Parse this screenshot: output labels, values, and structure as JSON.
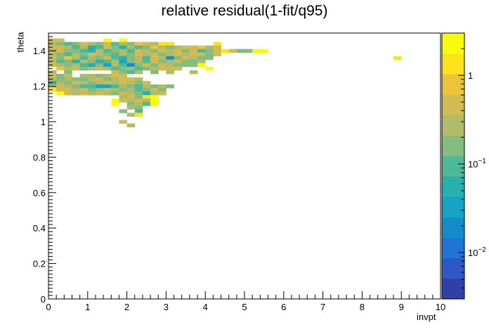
{
  "chart_data": {
    "type": "heatmap",
    "title": "relative residual(1-fit/q95)",
    "xlabel": "invpt",
    "ylabel": "theta",
    "xlim": [
      0,
      10
    ],
    "ylim": [
      0,
      1.5
    ],
    "x_ticks": [
      "0",
      "1",
      "2",
      "3",
      "4",
      "5",
      "6",
      "7",
      "8",
      "9",
      "10"
    ],
    "y_ticks": [
      "0",
      "0.2",
      "0.4",
      "0.6",
      "0.8",
      "1",
      "1.2",
      "1.4"
    ],
    "colorbar": {
      "scale": "log",
      "range": [
        0.003,
        3
      ],
      "tick_labels": [
        "10^-2",
        "10^-1",
        "1"
      ],
      "palette": [
        "#3040a8",
        "#2d58c8",
        "#1f74d6",
        "#148ccc",
        "#17a3c4",
        "#27b0ae",
        "#4fb896",
        "#84bc80",
        "#b0bc6a",
        "#d2bb52",
        "#eec23a",
        "#fde31c",
        "#f9fb0e"
      ]
    },
    "bin_width": [
      0.2,
      0.02
    ],
    "bins": [
      [
        0.1,
        1.46,
        0.4
      ],
      [
        0.3,
        1.46,
        0.4
      ],
      [
        1.5,
        1.46,
        2.0
      ],
      [
        1.9,
        1.46,
        2.2
      ],
      [
        0.1,
        1.44,
        0.3
      ],
      [
        0.3,
        1.44,
        0.2
      ],
      [
        0.5,
        1.44,
        0.1
      ],
      [
        0.7,
        1.44,
        0.2
      ],
      [
        0.9,
        1.44,
        0.4
      ],
      [
        1.1,
        1.44,
        0.3
      ],
      [
        1.3,
        1.44,
        0.2
      ],
      [
        1.5,
        1.44,
        0.6
      ],
      [
        1.7,
        1.44,
        0.1
      ],
      [
        1.9,
        1.44,
        0.3
      ],
      [
        2.1,
        1.44,
        0.2
      ],
      [
        2.3,
        1.44,
        0.8
      ],
      [
        2.5,
        1.44,
        0.4
      ],
      [
        2.7,
        1.44,
        0.3
      ],
      [
        2.9,
        1.44,
        1.5
      ],
      [
        3.1,
        1.44,
        1.3
      ],
      [
        4.3,
        1.44,
        1.2
      ],
      [
        0.1,
        1.42,
        0.5
      ],
      [
        0.3,
        1.42,
        0.5
      ],
      [
        0.5,
        1.42,
        0.3
      ],
      [
        0.7,
        1.42,
        0.1
      ],
      [
        0.9,
        1.42,
        0.3
      ],
      [
        1.1,
        1.42,
        0.05
      ],
      [
        1.3,
        1.42,
        0.1
      ],
      [
        1.5,
        1.42,
        0.4
      ],
      [
        1.7,
        1.42,
        0.2
      ],
      [
        1.9,
        1.42,
        0.06
      ],
      [
        2.1,
        1.42,
        0.3
      ],
      [
        2.3,
        1.42,
        0.1
      ],
      [
        2.5,
        1.42,
        0.2
      ],
      [
        2.7,
        1.42,
        1.0
      ],
      [
        2.9,
        1.42,
        0.3
      ],
      [
        3.1,
        1.42,
        0.2
      ],
      [
        3.3,
        1.42,
        0.3
      ],
      [
        3.5,
        1.42,
        0.4
      ],
      [
        3.7,
        1.42,
        0.5
      ],
      [
        3.9,
        1.42,
        0.8
      ],
      [
        4.1,
        1.42,
        0.3
      ],
      [
        4.3,
        1.42,
        0.4
      ],
      [
        0.1,
        1.4,
        0.3
      ],
      [
        0.3,
        1.4,
        0.4
      ],
      [
        0.5,
        1.4,
        0.2
      ],
      [
        0.7,
        1.4,
        0.2
      ],
      [
        0.9,
        1.4,
        0.1
      ],
      [
        1.1,
        1.4,
        0.06
      ],
      [
        1.3,
        1.4,
        0.3
      ],
      [
        1.5,
        1.4,
        0.1
      ],
      [
        1.7,
        1.4,
        0.2
      ],
      [
        1.9,
        1.4,
        0.3
      ],
      [
        2.1,
        1.4,
        0.1
      ],
      [
        2.3,
        1.4,
        0.4
      ],
      [
        2.5,
        1.4,
        0.3
      ],
      [
        2.7,
        1.4,
        0.2
      ],
      [
        2.9,
        1.4,
        0.5
      ],
      [
        3.1,
        1.4,
        0.3
      ],
      [
        3.3,
        1.4,
        0.4
      ],
      [
        3.5,
        1.4,
        0.2
      ],
      [
        3.7,
        1.4,
        0.5
      ],
      [
        3.9,
        1.4,
        0.1
      ],
      [
        4.1,
        1.4,
        0.2
      ],
      [
        4.3,
        1.4,
        0.4
      ],
      [
        4.5,
        1.4,
        1.3
      ],
      [
        4.7,
        1.4,
        0.4
      ],
      [
        4.9,
        1.4,
        0.2
      ],
      [
        5.1,
        1.4,
        0.15
      ],
      [
        5.3,
        1.4,
        3.0
      ],
      [
        5.5,
        1.4,
        3.0
      ],
      [
        0.1,
        1.38,
        0.3
      ],
      [
        0.3,
        1.38,
        0.2
      ],
      [
        0.5,
        1.38,
        0.1
      ],
      [
        0.7,
        1.38,
        0.3
      ],
      [
        0.9,
        1.38,
        0.2
      ],
      [
        1.1,
        1.38,
        0.4
      ],
      [
        1.3,
        1.38,
        0.3
      ],
      [
        1.5,
        1.38,
        0.15
      ],
      [
        1.7,
        1.38,
        0.08
      ],
      [
        1.9,
        1.38,
        0.3
      ],
      [
        2.1,
        1.38,
        0.2
      ],
      [
        2.3,
        1.38,
        0.4
      ],
      [
        2.5,
        1.38,
        0.3
      ],
      [
        2.7,
        1.38,
        0.5
      ],
      [
        2.9,
        1.38,
        0.2
      ],
      [
        3.1,
        1.38,
        0.3
      ],
      [
        3.3,
        1.38,
        0.4
      ],
      [
        3.5,
        1.38,
        0.3
      ],
      [
        3.7,
        1.38,
        0.5
      ],
      [
        3.9,
        1.38,
        0.4
      ],
      [
        4.1,
        1.38,
        0.2
      ],
      [
        4.3,
        1.38,
        0.5
      ],
      [
        0.1,
        1.36,
        0.4
      ],
      [
        0.3,
        1.36,
        0.2
      ],
      [
        0.5,
        1.36,
        0.7
      ],
      [
        0.7,
        1.36,
        0.3
      ],
      [
        0.9,
        1.36,
        0.1
      ],
      [
        1.1,
        1.36,
        0.3
      ],
      [
        1.3,
        1.36,
        0.2
      ],
      [
        1.5,
        1.36,
        0.4
      ],
      [
        1.7,
        1.36,
        0.1
      ],
      [
        1.9,
        1.36,
        0.05
      ],
      [
        2.1,
        1.36,
        0.2
      ],
      [
        2.3,
        1.36,
        0.3
      ],
      [
        2.5,
        1.36,
        0.1
      ],
      [
        2.7,
        1.36,
        0.4
      ],
      [
        2.9,
        1.36,
        0.3
      ],
      [
        3.1,
        1.36,
        0.02
      ],
      [
        3.3,
        1.36,
        0.2
      ],
      [
        3.5,
        1.36,
        0.5
      ],
      [
        3.7,
        1.36,
        0.3
      ],
      [
        3.9,
        1.36,
        0.15
      ],
      [
        4.1,
        1.36,
        0.2
      ],
      [
        8.9,
        1.36,
        1.2
      ],
      [
        0.1,
        1.34,
        0.3
      ],
      [
        0.3,
        1.34,
        0.1
      ],
      [
        0.5,
        1.34,
        0.2
      ],
      [
        0.7,
        1.34,
        0.06
      ],
      [
        0.9,
        1.34,
        0.3
      ],
      [
        1.1,
        1.34,
        0.2
      ],
      [
        1.3,
        1.34,
        0.05
      ],
      [
        1.5,
        1.34,
        0.1
      ],
      [
        1.7,
        1.34,
        0.3
      ],
      [
        1.9,
        1.34,
        0.04
      ],
      [
        2.1,
        1.34,
        0.15
      ],
      [
        2.3,
        1.34,
        0.3
      ],
      [
        2.5,
        1.34,
        0.1
      ],
      [
        2.7,
        1.34,
        0.4
      ],
      [
        2.9,
        1.34,
        0.2
      ],
      [
        3.1,
        1.34,
        0.3
      ],
      [
        3.3,
        1.34,
        0.4
      ],
      [
        3.5,
        1.34,
        0.2
      ],
      [
        3.7,
        1.34,
        0.2
      ],
      [
        3.9,
        1.34,
        0.3
      ],
      [
        0.1,
        1.32,
        0.5
      ],
      [
        0.3,
        1.32,
        0.3
      ],
      [
        0.5,
        1.32,
        0.2
      ],
      [
        0.7,
        1.32,
        0.3
      ],
      [
        0.9,
        1.32,
        0.1
      ],
      [
        1.1,
        1.32,
        0.05
      ],
      [
        1.3,
        1.32,
        0.2
      ],
      [
        1.5,
        1.32,
        0.04
      ],
      [
        1.7,
        1.32,
        0.3
      ],
      [
        1.9,
        1.32,
        0.1
      ],
      [
        2.1,
        1.32,
        0.015
      ],
      [
        2.3,
        1.32,
        0.2
      ],
      [
        2.5,
        1.32,
        0.4
      ],
      [
        2.7,
        1.32,
        0.2
      ],
      [
        2.9,
        1.32,
        0.4
      ],
      [
        3.1,
        1.32,
        0.3
      ],
      [
        3.3,
        1.32,
        0.15
      ],
      [
        3.5,
        1.32,
        0.2
      ],
      [
        3.7,
        1.32,
        0.15
      ],
      [
        3.9,
        1.32,
        2.0
      ],
      [
        0.3,
        1.3,
        0.8
      ],
      [
        0.5,
        1.3,
        0.3
      ],
      [
        0.7,
        1.3,
        0.4
      ],
      [
        0.9,
        1.3,
        0.2
      ],
      [
        1.1,
        1.3,
        0.3
      ],
      [
        1.3,
        1.3,
        0.4
      ],
      [
        1.5,
        1.3,
        0.3
      ],
      [
        1.7,
        1.3,
        0.1
      ],
      [
        1.9,
        1.3,
        0.2
      ],
      [
        2.1,
        1.3,
        0.3
      ],
      [
        2.3,
        1.3,
        0.08
      ],
      [
        2.5,
        1.3,
        0.2
      ],
      [
        2.7,
        1.3,
        0.3
      ],
      [
        2.9,
        1.3,
        0.5
      ],
      [
        3.1,
        1.3,
        0.4
      ],
      [
        3.3,
        1.3,
        0.5
      ],
      [
        4.1,
        1.3,
        3.0
      ],
      [
        0.1,
        1.28,
        0.3
      ],
      [
        0.5,
        1.28,
        0.2
      ],
      [
        1.7,
        1.28,
        0.4
      ],
      [
        1.9,
        1.28,
        0.2
      ],
      [
        2.1,
        1.28,
        0.1
      ],
      [
        2.3,
        1.28,
        0.3
      ],
      [
        2.7,
        1.28,
        0.2
      ],
      [
        3.1,
        1.28,
        0.3
      ],
      [
        3.7,
        1.28,
        0.3
      ],
      [
        0.1,
        1.26,
        0.4
      ],
      [
        0.3,
        1.26,
        0.2
      ],
      [
        0.5,
        1.26,
        0.5
      ],
      [
        0.9,
        1.26,
        0.3
      ],
      [
        1.1,
        1.26,
        0.3
      ],
      [
        1.3,
        1.26,
        0.2
      ],
      [
        1.5,
        1.26,
        0.3
      ],
      [
        1.7,
        1.26,
        0.4
      ],
      [
        1.9,
        1.26,
        0.5
      ],
      [
        0.1,
        1.24,
        0.3
      ],
      [
        0.3,
        1.24,
        0.2
      ],
      [
        0.5,
        1.24,
        0.3
      ],
      [
        0.7,
        1.24,
        0.2
      ],
      [
        0.9,
        1.24,
        0.15
      ],
      [
        1.1,
        1.24,
        0.3
      ],
      [
        1.3,
        1.24,
        0.4
      ],
      [
        1.5,
        1.24,
        0.2
      ],
      [
        1.7,
        1.24,
        0.3
      ],
      [
        1.9,
        1.24,
        0.4
      ],
      [
        2.1,
        1.24,
        0.5
      ],
      [
        2.3,
        1.24,
        0.3
      ],
      [
        0.1,
        1.22,
        0.06
      ],
      [
        0.3,
        1.22,
        0.3
      ],
      [
        0.5,
        1.22,
        0.2
      ],
      [
        0.7,
        1.22,
        0.4
      ],
      [
        0.9,
        1.22,
        0.3
      ],
      [
        1.1,
        1.22,
        0.2
      ],
      [
        1.3,
        1.22,
        0.3
      ],
      [
        1.5,
        1.22,
        0.5
      ],
      [
        1.7,
        1.22,
        0.3
      ],
      [
        1.9,
        1.22,
        0.4
      ],
      [
        2.1,
        1.22,
        0.3
      ],
      [
        2.3,
        1.22,
        0.2
      ],
      [
        2.5,
        1.22,
        0.4
      ],
      [
        0.1,
        1.2,
        0.4
      ],
      [
        0.3,
        1.2,
        0.5
      ],
      [
        0.5,
        1.2,
        0.3
      ],
      [
        0.7,
        1.2,
        0.2
      ],
      [
        0.9,
        1.2,
        0.1
      ],
      [
        1.1,
        1.2,
        0.08
      ],
      [
        1.3,
        1.2,
        0.04
      ],
      [
        1.5,
        1.2,
        0.03
      ],
      [
        1.7,
        1.2,
        0.1
      ],
      [
        1.9,
        1.2,
        0.3
      ],
      [
        2.1,
        1.2,
        0.2
      ],
      [
        2.3,
        1.2,
        0.1
      ],
      [
        2.5,
        1.2,
        0.3
      ],
      [
        2.7,
        1.2,
        0.2
      ],
      [
        2.9,
        1.2,
        0.3
      ],
      [
        3.1,
        1.2,
        0.2
      ],
      [
        0.1,
        1.18,
        1.5
      ],
      [
        0.3,
        1.18,
        0.4
      ],
      [
        0.5,
        1.18,
        0.5
      ],
      [
        0.7,
        1.18,
        0.3
      ],
      [
        0.9,
        1.18,
        0.4
      ],
      [
        1.1,
        1.18,
        0.2
      ],
      [
        1.3,
        1.18,
        0.3
      ],
      [
        1.5,
        1.18,
        0.4
      ],
      [
        1.7,
        1.18,
        0.3
      ],
      [
        1.9,
        1.18,
        0.2
      ],
      [
        2.1,
        1.18,
        0.3
      ],
      [
        2.3,
        1.18,
        0.1
      ],
      [
        2.5,
        1.18,
        0.2
      ],
      [
        2.7,
        1.18,
        0.4
      ],
      [
        2.9,
        1.18,
        0.2
      ],
      [
        0.3,
        1.16,
        3.0
      ],
      [
        0.5,
        1.16,
        0.4
      ],
      [
        0.7,
        1.16,
        0.3
      ],
      [
        0.9,
        1.16,
        0.5
      ],
      [
        1.1,
        1.16,
        0.3
      ],
      [
        1.3,
        1.16,
        0.4
      ],
      [
        1.5,
        1.16,
        0.3
      ],
      [
        1.7,
        1.16,
        0.2
      ],
      [
        1.9,
        1.16,
        0.4
      ],
      [
        2.1,
        1.16,
        0.3
      ],
      [
        2.3,
        1.16,
        0.2
      ],
      [
        2.5,
        1.16,
        0.05
      ],
      [
        2.7,
        1.16,
        0.3
      ],
      [
        2.9,
        1.16,
        0.4
      ],
      [
        1.9,
        1.14,
        0.3
      ],
      [
        2.1,
        1.14,
        0.4
      ],
      [
        2.3,
        1.14,
        0.2
      ],
      [
        2.5,
        1.14,
        1.5
      ],
      [
        2.7,
        1.14,
        1.8
      ],
      [
        1.7,
        1.12,
        2.8
      ],
      [
        1.9,
        1.12,
        0.4
      ],
      [
        2.1,
        1.12,
        0.3
      ],
      [
        2.3,
        1.12,
        0.4
      ],
      [
        2.5,
        1.12,
        0.3
      ],
      [
        2.7,
        1.12,
        2.5
      ],
      [
        1.7,
        1.1,
        2.6
      ],
      [
        2.1,
        1.1,
        0.2
      ],
      [
        2.3,
        1.1,
        0.3
      ],
      [
        2.5,
        1.1,
        0.1
      ],
      [
        2.7,
        1.1,
        2.8
      ],
      [
        2.1,
        1.08,
        0.3
      ],
      [
        2.3,
        1.08,
        0.2
      ],
      [
        1.9,
        1.06,
        0.2
      ],
      [
        2.3,
        1.06,
        0.1
      ],
      [
        2.1,
        1.04,
        0.3
      ],
      [
        2.3,
        1.04,
        1.6
      ],
      [
        1.9,
        1.0,
        0.4
      ],
      [
        2.1,
        0.98,
        0.3
      ]
    ]
  }
}
